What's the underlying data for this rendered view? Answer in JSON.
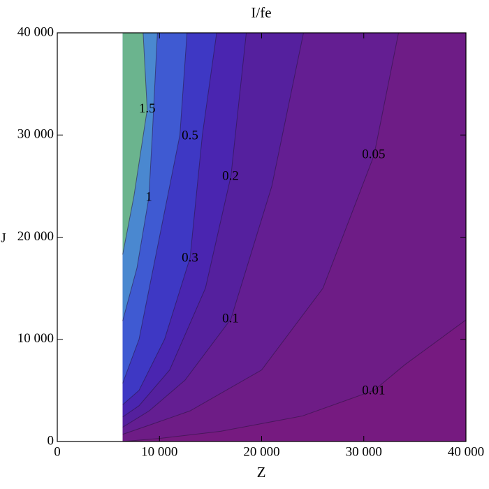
{
  "chart_data": {
    "type": "contour",
    "title": "I/fe",
    "x_label": "Z",
    "y_label": "J",
    "xlim": [
      0,
      40000
    ],
    "ylim": [
      0,
      40000
    ],
    "xticks": [
      0,
      {
        "value": 10000,
        "label": "10 000"
      },
      {
        "value": 20000,
        "label": "20 000"
      },
      {
        "value": 30000,
        "label": "30 000"
      },
      {
        "value": 40000,
        "label": "40 000"
      }
    ],
    "yticks": [
      0,
      {
        "value": 10000,
        "label": "10 000"
      },
      {
        "value": 20000,
        "label": "20 000"
      },
      {
        "value": 30000,
        "label": "30 000"
      },
      {
        "value": 40000,
        "label": "40 000"
      }
    ],
    "domain_x": [
      6400,
      40000
    ],
    "base_color": "#761a80",
    "levels": [
      {
        "value": 0.01,
        "color": "#6e1c86",
        "x": [
          40000,
          34000,
          31000,
          24000,
          16000,
          10000,
          6400
        ],
        "y": [
          11900,
          7500,
          5000,
          2500,
          1000,
          300,
          0
        ],
        "label_point": [
          30970,
          4920
        ]
      },
      {
        "value": 0.05,
        "color": "#641e92",
        "x": [
          33400,
          31000,
          26000,
          20000,
          13000,
          9000,
          6400
        ],
        "y": [
          40000,
          28000,
          15000,
          7000,
          3000,
          1600,
          700
        ],
        "label_point": [
          30970,
          28030
        ]
      },
      {
        "value": 0.1,
        "color": "#55209e",
        "x": [
          24100,
          21000,
          17000,
          12500,
          9000,
          6400
        ],
        "y": [
          40000,
          25000,
          12000,
          6000,
          3000,
          1400
        ],
        "label_point": [
          16960,
          11970
        ]
      },
      {
        "value": 0.2,
        "color": "#4a25b0",
        "x": [
          18500,
          17000,
          14500,
          11000,
          8000,
          6400
        ],
        "y": [
          40000,
          26000,
          15000,
          7000,
          3500,
          2400
        ],
        "label_point": [
          16960,
          25910
        ]
      },
      {
        "value": 0.3,
        "color": "#3e38c4",
        "x": [
          15600,
          14200,
          13000,
          10500,
          8000,
          6400
        ],
        "y": [
          40000,
          30000,
          18000,
          10000,
          5000,
          3600
        ],
        "label_point": [
          12990,
          17910
        ]
      },
      {
        "value": 0.5,
        "color": "#3f5ad2",
        "x": [
          12700,
          12000,
          10000,
          8000,
          6400
        ],
        "y": [
          40000,
          30000,
          20000,
          10000,
          5700
        ],
        "label_point": [
          12990,
          29880
        ]
      },
      {
        "value": 1,
        "color": "#4a88d0",
        "x": [
          9800,
          9300,
          8960,
          7800,
          6400
        ],
        "y": [
          40000,
          30000,
          23860,
          17000,
          11800
        ],
        "label_point": [
          8960,
          23860
        ]
      },
      {
        "value": 1.5,
        "color": "#6bb48e",
        "x": [
          8400,
          8800,
          7500,
          6400
        ],
        "y": [
          40000,
          32500,
          24000,
          18300
        ],
        "label_point": [
          8800,
          32500
        ]
      }
    ],
    "top_color": "#e2a23a"
  }
}
